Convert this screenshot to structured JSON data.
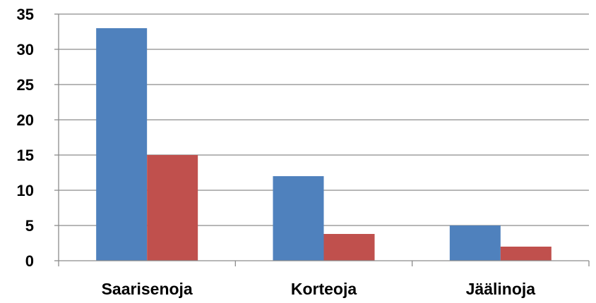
{
  "chart_data": {
    "type": "bar",
    "categories": [
      "Saarisenoja",
      "Korteoja",
      "Jäälinoja"
    ],
    "series": [
      {
        "values": [
          33,
          12,
          5
        ],
        "color": "#4F81BD"
      },
      {
        "values": [
          15,
          3.8,
          2
        ],
        "color": "#C0504D"
      }
    ],
    "title": "",
    "xlabel": "",
    "ylabel": "",
    "ylim": [
      0,
      35
    ],
    "yticks": [
      "0",
      "5",
      "10",
      "15",
      "20",
      "25",
      "30",
      "35"
    ],
    "grid": true,
    "legend": "none",
    "colors": {
      "gridline": "#8C8C8C",
      "axis": "#8C8C8C",
      "text": "#000000"
    }
  }
}
